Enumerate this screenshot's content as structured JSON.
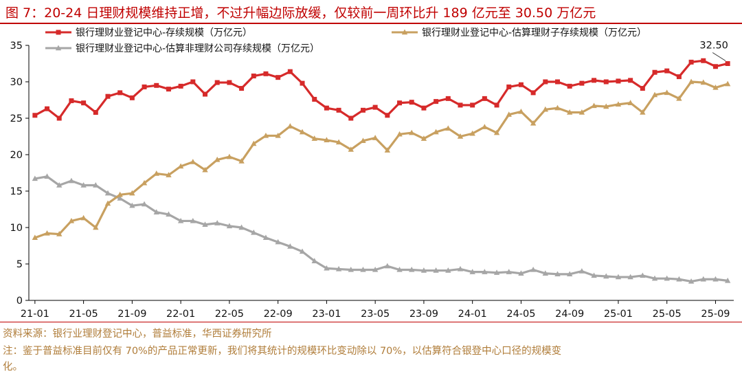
{
  "title": "图 7：20-24 日理财规模维持正增，不过升幅边际放缓，仅较前一周环比升 189 亿元至 30.50 万亿元",
  "source_note": "资料来源：银行业理财登记中心，普益标准，华西证券研究所",
  "footnote_line1": "注：鉴于普益标准目前仅有 70%的产品正常更新，我们将其统计的规模环比变动除以 70%，以估算符合银登中心口径的规模变",
  "footnote_line2": "化。",
  "chart_data": {
    "type": "line",
    "x": [
      "21-01",
      "21-02",
      "21-03",
      "21-04",
      "21-05",
      "21-06",
      "21-07",
      "21-08",
      "21-09",
      "21-10",
      "21-11",
      "21-12",
      "22-01",
      "22-02",
      "22-03",
      "22-04",
      "22-05",
      "22-06",
      "22-07",
      "22-08",
      "22-09",
      "22-10",
      "22-11",
      "22-12",
      "23-01",
      "23-02",
      "23-03",
      "23-04",
      "23-05",
      "23-06",
      "23-07",
      "23-08",
      "23-09",
      "23-10",
      "23-11",
      "23-12",
      "24-01",
      "24-02",
      "24-03",
      "24-04",
      "24-05",
      "24-06",
      "24-07",
      "24-08",
      "24-09",
      "24-10",
      "24-11",
      "24-12",
      "25-01",
      "25-02",
      "25-03",
      "25-04",
      "25-05",
      "25-06",
      "25-07",
      "25-08",
      "25-09",
      "25-10"
    ],
    "xticks": [
      "21-01",
      "21-05",
      "21-09",
      "22-01",
      "22-05",
      "22-09",
      "23-01",
      "23-05",
      "23-09",
      "24-01",
      "24-05",
      "24-09",
      "25-01",
      "25-05",
      "25-09"
    ],
    "yticks": [
      0,
      5,
      10,
      15,
      20,
      25,
      30,
      35
    ],
    "ylim": [
      0,
      35
    ],
    "grid": false,
    "legend_position": "top",
    "series": [
      {
        "name": "银行理财业登记中心-存续规模（万亿元）",
        "color": "#d62a2a",
        "marker": "square",
        "values": [
          25.4,
          26.3,
          25.0,
          27.4,
          27.1,
          25.8,
          28.0,
          28.5,
          27.8,
          29.3,
          29.5,
          29.0,
          29.4,
          30.0,
          28.3,
          29.9,
          29.9,
          29.1,
          30.8,
          31.1,
          30.6,
          31.4,
          29.8,
          27.6,
          26.4,
          26.1,
          25.0,
          26.1,
          26.5,
          25.4,
          27.1,
          27.2,
          26.4,
          27.3,
          27.7,
          26.8,
          26.8,
          27.7,
          26.8,
          29.3,
          29.6,
          28.5,
          30.0,
          30.0,
          29.4,
          29.8,
          30.2,
          30.0,
          30.1,
          30.2,
          29.1,
          31.3,
          31.5,
          30.7,
          32.7,
          32.9,
          32.1,
          32.5
        ]
      },
      {
        "name": "银行理财业登记中心-估算理财子存续规模（万亿元）",
        "color": "#c8a060",
        "marker": "triangle",
        "values": [
          8.6,
          9.2,
          9.1,
          10.9,
          11.3,
          10.0,
          13.3,
          14.5,
          14.7,
          16.1,
          17.4,
          17.2,
          18.4,
          19.0,
          17.9,
          19.3,
          19.7,
          19.1,
          21.5,
          22.6,
          22.6,
          23.9,
          23.1,
          22.2,
          22.0,
          21.7,
          20.7,
          21.9,
          22.3,
          20.6,
          22.8,
          23.0,
          22.2,
          23.1,
          23.6,
          22.5,
          22.9,
          23.8,
          23.0,
          25.5,
          25.9,
          24.3,
          26.2,
          26.4,
          25.8,
          25.8,
          26.7,
          26.6,
          26.9,
          27.1,
          25.8,
          28.2,
          28.5,
          27.7,
          30.0,
          29.9,
          29.2,
          29.7
        ]
      },
      {
        "name": "银行理财业登记中心-估算非理财公司存续规模（万亿元）",
        "color": "#a6a6a6",
        "marker": "triangle",
        "values": [
          16.7,
          17.0,
          15.8,
          16.4,
          15.8,
          15.8,
          14.7,
          14.0,
          13.0,
          13.2,
          12.1,
          11.8,
          10.9,
          10.9,
          10.4,
          10.6,
          10.2,
          10.0,
          9.3,
          8.6,
          8.0,
          7.4,
          6.7,
          5.4,
          4.4,
          4.3,
          4.2,
          4.2,
          4.2,
          4.7,
          4.2,
          4.2,
          4.1,
          4.1,
          4.1,
          4.3,
          3.9,
          3.9,
          3.8,
          3.9,
          3.7,
          4.2,
          3.7,
          3.6,
          3.6,
          4.0,
          3.4,
          3.3,
          3.2,
          3.2,
          3.4,
          3.0,
          3.0,
          2.9,
          2.6,
          2.9,
          2.9,
          2.7
        ]
      }
    ],
    "annotation": {
      "label": "32.50",
      "series_index": 0,
      "point_index": 57
    }
  }
}
